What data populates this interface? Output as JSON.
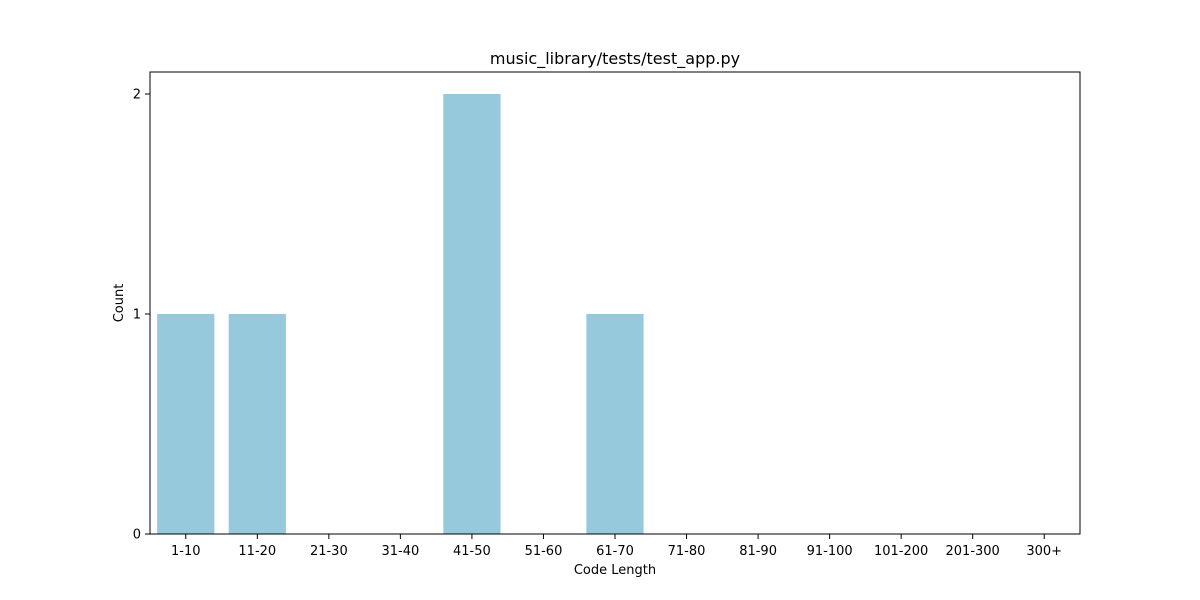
{
  "chart_data": {
    "type": "bar",
    "title": "music_library/tests/test_app.py",
    "xlabel": "Code Length",
    "ylabel": "Count",
    "categories": [
      "1-10",
      "11-20",
      "21-30",
      "31-40",
      "41-50",
      "51-60",
      "61-70",
      "71-80",
      "81-90",
      "91-100",
      "101-200",
      "201-300",
      "300+"
    ],
    "values": [
      1,
      1,
      0,
      0,
      2,
      0,
      1,
      0,
      0,
      0,
      0,
      0,
      0
    ],
    "ylim": [
      0,
      2.1
    ],
    "yticks": [
      "0",
      "1",
      "2"
    ],
    "bar_color": "#96c9dc",
    "grid": false,
    "legend": "none"
  }
}
